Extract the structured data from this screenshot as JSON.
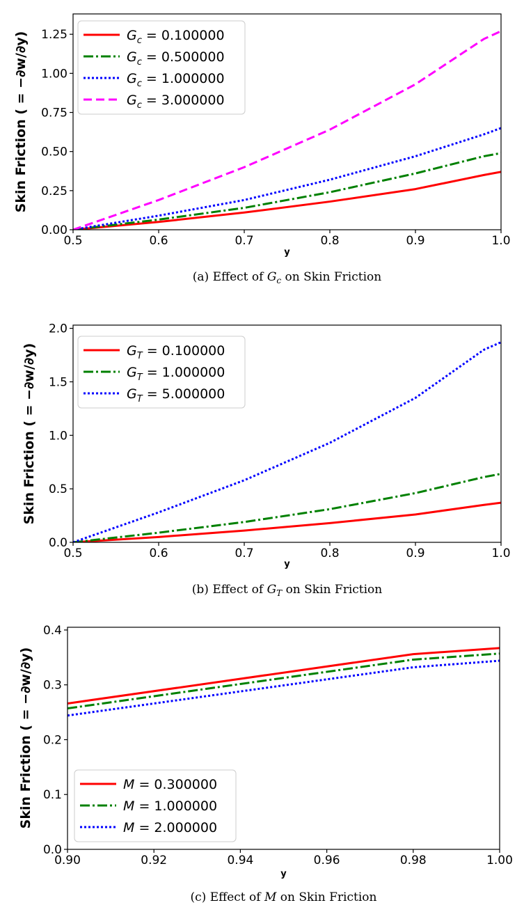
{
  "chart_data": [
    {
      "type": "line",
      "ylabel": "Skin Friction ( = −∂w/∂y)",
      "xlabel": "y",
      "caption": "(a) Effect of Gc on Skin Friction",
      "xlim": [
        0.5,
        1.0
      ],
      "ylim": [
        0,
        1.38
      ],
      "xticks": [
        "0.5",
        "0.6",
        "0.7",
        "0.8",
        "0.9",
        "1.0"
      ],
      "xtick_values": [
        0.5,
        0.6,
        0.7,
        0.8,
        0.9,
        1.0
      ],
      "yticks": [
        "0.00",
        "0.25",
        "0.50",
        "0.75",
        "1.00",
        "1.25"
      ],
      "ytick_values": [
        0,
        0.25,
        0.5,
        0.75,
        1.0,
        1.25
      ],
      "x": [
        0.5,
        0.6,
        0.7,
        0.8,
        0.9,
        0.98,
        1.0
      ],
      "legend_position": "upper-left",
      "series": [
        {
          "name": "Gc = 0.100000",
          "color": "#ff0000",
          "dash": "solid",
          "values": [
            0,
            0.05,
            0.11,
            0.18,
            0.26,
            0.35,
            0.37
          ]
        },
        {
          "name": "Gc = 0.500000",
          "color": "#008000",
          "dash": "dashdot",
          "values": [
            0,
            0.065,
            0.14,
            0.24,
            0.36,
            0.47,
            0.49
          ]
        },
        {
          "name": "Gc = 1.000000",
          "color": "#0000ff",
          "dash": "dotted",
          "values": [
            0,
            0.09,
            0.19,
            0.32,
            0.47,
            0.61,
            0.65
          ]
        },
        {
          "name": "Gc = 3.000000",
          "color": "#ff00ff",
          "dash": "dashed",
          "values": [
            0,
            0.19,
            0.4,
            0.64,
            0.93,
            1.22,
            1.27
          ]
        }
      ]
    },
    {
      "type": "line",
      "ylabel": "Skin Friction ( = −∂w/∂y)",
      "xlabel": "y",
      "caption": "(b) Effect of GT on Skin Friction",
      "xlim": [
        0.5,
        1.0
      ],
      "ylim": [
        0,
        2.03
      ],
      "xticks": [
        "0.5",
        "0.6",
        "0.7",
        "0.8",
        "0.9",
        "1.0"
      ],
      "xtick_values": [
        0.5,
        0.6,
        0.7,
        0.8,
        0.9,
        1.0
      ],
      "yticks": [
        "0.0",
        "0.5",
        "1.0",
        "1.5",
        "2.0"
      ],
      "ytick_values": [
        0,
        0.5,
        1.0,
        1.5,
        2.0
      ],
      "x": [
        0.5,
        0.6,
        0.7,
        0.8,
        0.9,
        0.98,
        1.0
      ],
      "legend_position": "upper-left",
      "series": [
        {
          "name": "GT = 0.100000",
          "color": "#ff0000",
          "dash": "solid",
          "values": [
            0,
            0.05,
            0.11,
            0.18,
            0.26,
            0.35,
            0.37
          ]
        },
        {
          "name": "GT = 1.000000",
          "color": "#008000",
          "dash": "dashdot",
          "values": [
            0,
            0.09,
            0.19,
            0.31,
            0.46,
            0.61,
            0.64
          ]
        },
        {
          "name": "GT = 5.000000",
          "color": "#0000ff",
          "dash": "dotted",
          "values": [
            0,
            0.28,
            0.58,
            0.93,
            1.35,
            1.8,
            1.87
          ]
        }
      ]
    },
    {
      "type": "line",
      "ylabel": "Skin Friction ( = −∂w/∂y)",
      "xlabel": "y",
      "caption": "(c) Effect of M on Skin Friction",
      "xlim": [
        0.9,
        1.0
      ],
      "ylim": [
        0,
        0.405
      ],
      "xticks": [
        "0.90",
        "0.92",
        "0.94",
        "0.96",
        "0.98",
        "1.00"
      ],
      "xtick_values": [
        0.9,
        0.92,
        0.94,
        0.96,
        0.98,
        1.0
      ],
      "yticks": [
        "0.0",
        "0.1",
        "0.2",
        "0.3",
        "0.4"
      ],
      "ytick_values": [
        0,
        0.1,
        0.2,
        0.3,
        0.4
      ],
      "x": [
        0.9,
        0.98,
        1.0
      ],
      "legend_position": "lower-left",
      "series": [
        {
          "name": "M = 0.300000",
          "color": "#ff0000",
          "dash": "solid",
          "values": [
            0.266,
            0.356,
            0.367
          ]
        },
        {
          "name": "M = 1.000000",
          "color": "#008000",
          "dash": "dashdot",
          "values": [
            0.257,
            0.346,
            0.357
          ]
        },
        {
          "name": "M = 2.000000",
          "color": "#0000ff",
          "dash": "dotted",
          "values": [
            0.244,
            0.332,
            0.344
          ]
        }
      ]
    }
  ]
}
